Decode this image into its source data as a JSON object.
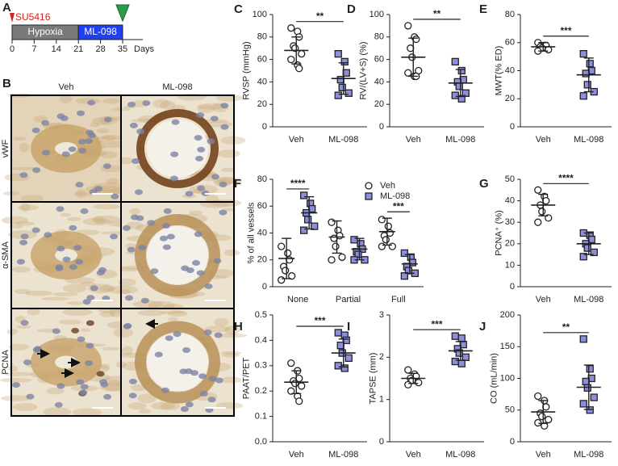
{
  "timeline": {
    "label": "A",
    "treatment": "SU5416",
    "phases": [
      {
        "label": "Hypoxia",
        "start": 0,
        "end": 21
      },
      {
        "label": "ML-098",
        "start": 21,
        "end": 35
      }
    ],
    "days": [
      0,
      7,
      14,
      21,
      28,
      35
    ],
    "unit": "Days"
  },
  "micrographs": {
    "label": "B",
    "columns": [
      "Veh",
      "ML-098"
    ],
    "rows": [
      "vWF",
      "α-SMA",
      "PCNA"
    ]
  },
  "chart_data": [
    {
      "label": "C",
      "type": "dotplot",
      "ylabel": "RVSP (mmHg)",
      "categories": [
        "Veh",
        "ML-098"
      ],
      "points": [
        [
          88,
          85,
          80,
          72,
          70,
          65,
          60,
          55,
          52
        ],
        [
          65,
          58,
          48,
          42,
          35,
          30,
          28
        ]
      ],
      "mean": [
        68,
        43
      ],
      "sd": [
        12,
        14
      ],
      "markers": [
        "circle",
        "square"
      ],
      "colors": [
        "#ffffff",
        "#8c8fdc"
      ],
      "ylim": [
        0,
        100
      ],
      "yticks": [
        0,
        20,
        40,
        60,
        80,
        100
      ],
      "significance": "**"
    },
    {
      "label": "D",
      "type": "dotplot",
      "ylabel": "RV/(LV+S) (%)",
      "categories": [
        "Veh",
        "ML-098"
      ],
      "points": [
        [
          90,
          80,
          78,
          70,
          62,
          50,
          48,
          45,
          45
        ],
        [
          58,
          50,
          42,
          40,
          36,
          30,
          28,
          25
        ]
      ],
      "mean": [
        62,
        39
      ],
      "sd": [
        17,
        12
      ],
      "markers": [
        "circle",
        "square"
      ],
      "colors": [
        "#ffffff",
        "#8c8fdc"
      ],
      "ylim": [
        0,
        100
      ],
      "yticks": [
        0,
        20,
        40,
        60,
        80,
        100
      ],
      "significance": "**"
    },
    {
      "label": "E",
      "type": "dotplot",
      "ylabel": "MWT(% ED)",
      "categories": [
        "Veh",
        "ML-098"
      ],
      "points": [
        [
          60,
          58,
          58,
          57,
          56,
          55,
          54
        ],
        [
          52,
          45,
          40,
          38,
          30,
          25,
          22
        ]
      ],
      "mean": [
        57,
        37
      ],
      "sd": [
        3,
        12
      ],
      "markers": [
        "circle",
        "square"
      ],
      "colors": [
        "#ffffff",
        "#8c8fdc"
      ],
      "ylim": [
        0,
        80
      ],
      "yticks": [
        0,
        20,
        40,
        60,
        80
      ],
      "significance": "***"
    },
    {
      "label": "F",
      "type": "grouped-dotplot",
      "ylabel": "% of all vessels",
      "categories": [
        "None",
        "Partial",
        "Full"
      ],
      "series": [
        {
          "name": "Veh",
          "marker": "circle",
          "color": "#ffffff",
          "points": [
            [
              30,
              25,
              20,
              15,
              12,
              8,
              5
            ],
            [
              48,
              42,
              38,
              36,
              30,
              22,
              20
            ],
            [
              50,
              45,
              40,
              38,
              35,
              30,
              30
            ]
          ],
          "mean": [
            21,
            37,
            41
          ],
          "sd": [
            15,
            12,
            10
          ]
        },
        {
          "name": "ML-098",
          "marker": "square",
          "color": "#8c8fdc",
          "points": [
            [
              68,
              62,
              58,
              55,
              50,
              45,
              42
            ],
            [
              35,
              32,
              28,
              26,
              24,
              20,
              20
            ],
            [
              25,
              22,
              18,
              15,
              12,
              10,
              8
            ]
          ],
          "mean": [
            55,
            28,
            17
          ],
          "sd": [
            12,
            8,
            7
          ]
        }
      ],
      "ylim": [
        0,
        80
      ],
      "yticks": [
        0,
        20,
        40,
        60,
        80
      ],
      "significance": [
        "****",
        null,
        "***"
      ]
    },
    {
      "label": "G",
      "type": "dotplot",
      "ylabel": "PCNA⁺ (%)",
      "categories": [
        "Veh",
        "ML-098"
      ],
      "points": [
        [
          45,
          42,
          40,
          38,
          35,
          32,
          30
        ],
        [
          25,
          24,
          22,
          20,
          18,
          16,
          14
        ]
      ],
      "mean": [
        38,
        20
      ],
      "sd": [
        5,
        5
      ],
      "markers": [
        "circle",
        "square"
      ],
      "colors": [
        "#ffffff",
        "#8c8fdc"
      ],
      "ylim": [
        0,
        50
      ],
      "yticks": [
        0,
        10,
        20,
        30,
        40,
        50
      ],
      "significance": "****"
    },
    {
      "label": "H",
      "type": "dotplot",
      "ylabel": "PAAT/PET",
      "categories": [
        "Veh",
        "ML-098"
      ],
      "points": [
        [
          0.31,
          0.28,
          0.25,
          0.24,
          0.23,
          0.22,
          0.2,
          0.18,
          0.16
        ],
        [
          0.43,
          0.42,
          0.4,
          0.38,
          0.35,
          0.33,
          0.3,
          0.29
        ]
      ],
      "mean": [
        0.235,
        0.35
      ],
      "sd": [
        0.045,
        0.055
      ],
      "markers": [
        "circle",
        "square"
      ],
      "colors": [
        "#ffffff",
        "#8c8fdc"
      ],
      "ylim": [
        0,
        0.5
      ],
      "yticks": [
        {
          "value": 0,
          "label": "0.0"
        },
        0.1,
        0.2,
        0.3,
        0.4,
        0.5
      ],
      "significance": "***"
    },
    {
      "label": "I",
      "type": "dotplot",
      "ylabel": "TAPSE (mm)",
      "categories": [
        "Veh",
        "ML-098"
      ],
      "points": [
        [
          1.7,
          1.6,
          1.55,
          1.5,
          1.45,
          1.4,
          1.35
        ],
        [
          2.5,
          2.45,
          2.3,
          2.2,
          2.1,
          2.0,
          1.9,
          1.85
        ]
      ],
      "mean": [
        1.5,
        2.15
      ],
      "sd": [
        0.12,
        0.22
      ],
      "markers": [
        "circle",
        "square"
      ],
      "colors": [
        "#ffffff",
        "#8c8fdc"
      ],
      "ylim": [
        0,
        3
      ],
      "yticks": [
        0,
        1,
        2,
        3
      ],
      "significance": "***"
    },
    {
      "label": "J",
      "type": "dotplot",
      "ylabel": "CO (mL/min)",
      "categories": [
        "Veh",
        "ML-098"
      ],
      "points": [
        [
          72,
          65,
          55,
          45,
          40,
          35,
          30,
          25
        ],
        [
          162,
          115,
          100,
          95,
          85,
          70,
          60,
          50
        ]
      ],
      "mean": [
        47,
        86
      ],
      "sd": [
        18,
        35
      ],
      "markers": [
        "circle",
        "square"
      ],
      "colors": [
        "#ffffff",
        "#8c8fdc"
      ],
      "ylim": [
        0,
        200
      ],
      "yticks": [
        0,
        50,
        100,
        150,
        200
      ],
      "significance": "**"
    }
  ]
}
